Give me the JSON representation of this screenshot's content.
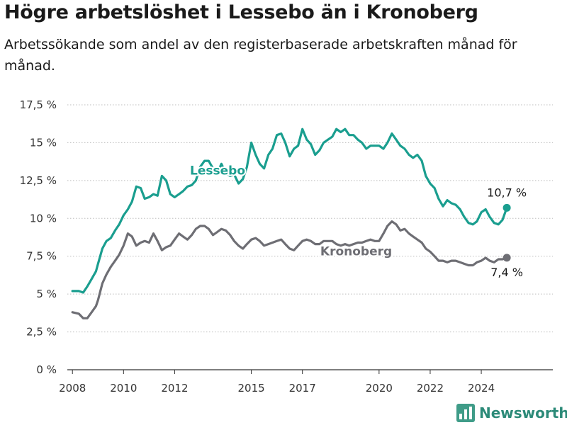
{
  "header": {
    "title": "Högre arbetslöshet i Lessebo än i Kronoberg",
    "subtitle": "Arbetssökande som andel av den registerbaserade arbetskraften månad för månad."
  },
  "brand": {
    "name": "Newsworthy",
    "icon": "bar-chart-logo-icon",
    "color": "#2c8a78"
  },
  "chart_data": {
    "type": "line",
    "title": "Högre arbetslöshet i Lessebo än i Kronoberg",
    "subtitle": "Arbetssökande som andel av den registerbaserade arbetskraften månad för månad.",
    "xlabel": "",
    "ylabel": "",
    "xlim": [
      2007.8,
      2026.8
    ],
    "ylim": [
      0,
      17.5
    ],
    "grid": true,
    "x_ticks": [
      {
        "value": 2008,
        "label": "2008"
      },
      {
        "value": 2010,
        "label": "2010"
      },
      {
        "value": 2012,
        "label": "2012"
      },
      {
        "value": 2015,
        "label": "2015"
      },
      {
        "value": 2017,
        "label": "2017"
      },
      {
        "value": 2020,
        "label": "2020"
      },
      {
        "value": 2022,
        "label": "2022"
      },
      {
        "value": 2024,
        "label": "2024"
      }
    ],
    "y_ticks": [
      {
        "value": 0,
        "label": "0 %"
      },
      {
        "value": 2.5,
        "label": "2,5 %"
      },
      {
        "value": 5,
        "label": "5 %"
      },
      {
        "value": 7.5,
        "label": "7,5 %"
      },
      {
        "value": 10,
        "label": "10 %"
      },
      {
        "value": 12.5,
        "label": "12,5 %"
      },
      {
        "value": 15,
        "label": "15 %"
      },
      {
        "value": 17.5,
        "label": "17,5 %"
      }
    ],
    "series": [
      {
        "name": "Lessebo",
        "color": "#1a9e8f",
        "end_label": "10,7 %",
        "points": [
          [
            2008.0,
            5.2
          ],
          [
            2008.25,
            5.2
          ],
          [
            2008.42,
            5.1
          ],
          [
            2008.58,
            5.5
          ],
          [
            2008.75,
            6.0
          ],
          [
            2008.92,
            6.5
          ],
          [
            2009.0,
            7.0
          ],
          [
            2009.17,
            8.0
          ],
          [
            2009.33,
            8.5
          ],
          [
            2009.5,
            8.7
          ],
          [
            2009.67,
            9.2
          ],
          [
            2009.83,
            9.6
          ],
          [
            2010.0,
            10.2
          ],
          [
            2010.17,
            10.6
          ],
          [
            2010.33,
            11.1
          ],
          [
            2010.5,
            12.1
          ],
          [
            2010.67,
            12.0
          ],
          [
            2010.83,
            11.3
          ],
          [
            2011.0,
            11.4
          ],
          [
            2011.17,
            11.6
          ],
          [
            2011.33,
            11.5
          ],
          [
            2011.5,
            12.8
          ],
          [
            2011.67,
            12.5
          ],
          [
            2011.83,
            11.6
          ],
          [
            2012.0,
            11.4
          ],
          [
            2012.17,
            11.6
          ],
          [
            2012.33,
            11.8
          ],
          [
            2012.5,
            12.1
          ],
          [
            2012.67,
            12.2
          ],
          [
            2012.83,
            12.5
          ],
          [
            2013.0,
            13.4
          ],
          [
            2013.17,
            13.8
          ],
          [
            2013.33,
            13.8
          ],
          [
            2013.5,
            13.3
          ],
          [
            2013.67,
            13.0
          ],
          [
            2013.83,
            13.6
          ],
          [
            2014.0,
            13.0
          ],
          [
            2014.17,
            12.8
          ],
          [
            2014.33,
            12.9
          ],
          [
            2014.5,
            12.3
          ],
          [
            2014.67,
            12.6
          ],
          [
            2014.83,
            13.4
          ],
          [
            2015.0,
            15.0
          ],
          [
            2015.17,
            14.2
          ],
          [
            2015.33,
            13.6
          ],
          [
            2015.5,
            13.3
          ],
          [
            2015.67,
            14.2
          ],
          [
            2015.83,
            14.6
          ],
          [
            2016.0,
            15.5
          ],
          [
            2016.17,
            15.6
          ],
          [
            2016.33,
            15.0
          ],
          [
            2016.5,
            14.1
          ],
          [
            2016.67,
            14.6
          ],
          [
            2016.83,
            14.8
          ],
          [
            2017.0,
            15.9
          ],
          [
            2017.17,
            15.2
          ],
          [
            2017.33,
            14.9
          ],
          [
            2017.5,
            14.2
          ],
          [
            2017.67,
            14.5
          ],
          [
            2017.83,
            15.0
          ],
          [
            2018.0,
            15.2
          ],
          [
            2018.17,
            15.4
          ],
          [
            2018.33,
            15.9
          ],
          [
            2018.5,
            15.7
          ],
          [
            2018.67,
            15.9
          ],
          [
            2018.83,
            15.5
          ],
          [
            2019.0,
            15.5
          ],
          [
            2019.17,
            15.2
          ],
          [
            2019.33,
            15.0
          ],
          [
            2019.5,
            14.6
          ],
          [
            2019.67,
            14.8
          ],
          [
            2019.83,
            14.8
          ],
          [
            2020.0,
            14.8
          ],
          [
            2020.17,
            14.6
          ],
          [
            2020.33,
            15.0
          ],
          [
            2020.5,
            15.6
          ],
          [
            2020.67,
            15.2
          ],
          [
            2020.83,
            14.8
          ],
          [
            2021.0,
            14.6
          ],
          [
            2021.17,
            14.2
          ],
          [
            2021.33,
            14.0
          ],
          [
            2021.5,
            14.2
          ],
          [
            2021.67,
            13.8
          ],
          [
            2021.83,
            12.8
          ],
          [
            2022.0,
            12.3
          ],
          [
            2022.17,
            12.0
          ],
          [
            2022.33,
            11.3
          ],
          [
            2022.5,
            10.8
          ],
          [
            2022.67,
            11.2
          ],
          [
            2022.83,
            11.0
          ],
          [
            2023.0,
            10.9
          ],
          [
            2023.17,
            10.6
          ],
          [
            2023.33,
            10.1
          ],
          [
            2023.5,
            9.7
          ],
          [
            2023.67,
            9.6
          ],
          [
            2023.83,
            9.8
          ],
          [
            2024.0,
            10.4
          ],
          [
            2024.17,
            10.6
          ],
          [
            2024.33,
            10.1
          ],
          [
            2024.5,
            9.7
          ],
          [
            2024.67,
            9.6
          ],
          [
            2024.83,
            9.9
          ],
          [
            2025.0,
            10.7
          ]
        ]
      },
      {
        "name": "Kronoberg",
        "color": "#6e6e74",
        "end_label": "7,4 %",
        "points": [
          [
            2008.0,
            3.8
          ],
          [
            2008.25,
            3.7
          ],
          [
            2008.42,
            3.4
          ],
          [
            2008.58,
            3.4
          ],
          [
            2008.75,
            3.8
          ],
          [
            2008.92,
            4.2
          ],
          [
            2009.0,
            4.6
          ],
          [
            2009.17,
            5.7
          ],
          [
            2009.33,
            6.3
          ],
          [
            2009.5,
            6.8
          ],
          [
            2009.67,
            7.2
          ],
          [
            2009.83,
            7.6
          ],
          [
            2010.0,
            8.2
          ],
          [
            2010.17,
            9.0
          ],
          [
            2010.33,
            8.8
          ],
          [
            2010.5,
            8.2
          ],
          [
            2010.67,
            8.4
          ],
          [
            2010.83,
            8.5
          ],
          [
            2011.0,
            8.4
          ],
          [
            2011.17,
            9.0
          ],
          [
            2011.33,
            8.5
          ],
          [
            2011.5,
            7.9
          ],
          [
            2011.67,
            8.1
          ],
          [
            2011.83,
            8.2
          ],
          [
            2012.0,
            8.6
          ],
          [
            2012.17,
            9.0
          ],
          [
            2012.33,
            8.8
          ],
          [
            2012.5,
            8.6
          ],
          [
            2012.67,
            8.9
          ],
          [
            2012.83,
            9.3
          ],
          [
            2013.0,
            9.5
          ],
          [
            2013.17,
            9.5
          ],
          [
            2013.33,
            9.3
          ],
          [
            2013.5,
            8.9
          ],
          [
            2013.67,
            9.1
          ],
          [
            2013.83,
            9.3
          ],
          [
            2014.0,
            9.2
          ],
          [
            2014.17,
            8.9
          ],
          [
            2014.33,
            8.5
          ],
          [
            2014.5,
            8.2
          ],
          [
            2014.67,
            8.0
          ],
          [
            2014.83,
            8.3
          ],
          [
            2015.0,
            8.6
          ],
          [
            2015.17,
            8.7
          ],
          [
            2015.33,
            8.5
          ],
          [
            2015.5,
            8.2
          ],
          [
            2015.67,
            8.3
          ],
          [
            2015.83,
            8.4
          ],
          [
            2016.0,
            8.5
          ],
          [
            2016.17,
            8.6
          ],
          [
            2016.33,
            8.3
          ],
          [
            2016.5,
            8.0
          ],
          [
            2016.67,
            7.9
          ],
          [
            2016.83,
            8.2
          ],
          [
            2017.0,
            8.5
          ],
          [
            2017.17,
            8.6
          ],
          [
            2017.33,
            8.5
          ],
          [
            2017.5,
            8.3
          ],
          [
            2017.67,
            8.3
          ],
          [
            2017.83,
            8.5
          ],
          [
            2018.0,
            8.5
          ],
          [
            2018.17,
            8.5
          ],
          [
            2018.33,
            8.3
          ],
          [
            2018.5,
            8.2
          ],
          [
            2018.67,
            8.3
          ],
          [
            2018.83,
            8.2
          ],
          [
            2019.0,
            8.3
          ],
          [
            2019.17,
            8.4
          ],
          [
            2019.33,
            8.4
          ],
          [
            2019.5,
            8.5
          ],
          [
            2019.67,
            8.6
          ],
          [
            2019.83,
            8.5
          ],
          [
            2020.0,
            8.5
          ],
          [
            2020.17,
            9.0
          ],
          [
            2020.33,
            9.5
          ],
          [
            2020.5,
            9.8
          ],
          [
            2020.67,
            9.6
          ],
          [
            2020.83,
            9.2
          ],
          [
            2021.0,
            9.3
          ],
          [
            2021.17,
            9.0
          ],
          [
            2021.33,
            8.8
          ],
          [
            2021.5,
            8.6
          ],
          [
            2021.67,
            8.4
          ],
          [
            2021.83,
            8.0
          ],
          [
            2022.0,
            7.8
          ],
          [
            2022.17,
            7.5
          ],
          [
            2022.33,
            7.2
          ],
          [
            2022.5,
            7.2
          ],
          [
            2022.67,
            7.1
          ],
          [
            2022.83,
            7.2
          ],
          [
            2023.0,
            7.2
          ],
          [
            2023.17,
            7.1
          ],
          [
            2023.33,
            7.0
          ],
          [
            2023.5,
            6.9
          ],
          [
            2023.67,
            6.9
          ],
          [
            2023.83,
            7.1
          ],
          [
            2024.0,
            7.2
          ],
          [
            2024.17,
            7.4
          ],
          [
            2024.33,
            7.2
          ],
          [
            2024.5,
            7.1
          ],
          [
            2024.67,
            7.3
          ],
          [
            2024.83,
            7.3
          ],
          [
            2025.0,
            7.4
          ]
        ]
      }
    ]
  }
}
